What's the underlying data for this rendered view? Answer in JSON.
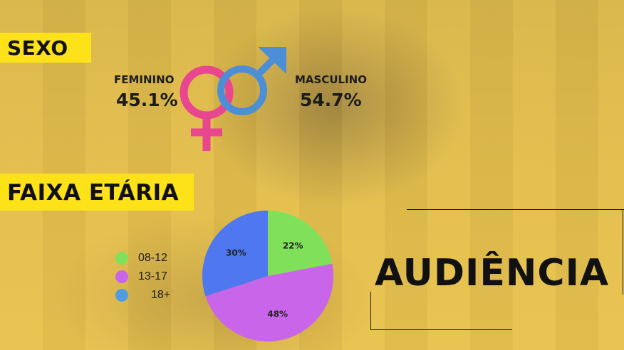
{
  "headings": {
    "sexo": "SEXO",
    "faixa_etaria": "FAIXA ETÁRIA",
    "audiencia": "AUDIÊNCIA"
  },
  "gender": {
    "female_label": "FEMININO",
    "female_value": "45.1%",
    "male_label": "MASCULINO",
    "male_value": "54.7%",
    "female_color": "#e8468f",
    "male_color": "#4c8fd6",
    "female_icon": "venus-icon",
    "male_icon": "mars-icon"
  },
  "chart_data": {
    "type": "pie",
    "categories": [
      "08-12",
      "13-17",
      "18+"
    ],
    "values": [
      22,
      48,
      30
    ],
    "labels": [
      "22%",
      "48%",
      "30%"
    ],
    "colors": [
      "#80e05a",
      "#c965e8",
      "#4f78f0"
    ],
    "legend_colors": [
      "#80e05a",
      "#c965e8",
      "#4f9de0"
    ],
    "legend_position": "left"
  },
  "theme": {
    "label_bg": "#fde21a",
    "background": "#e2bd4c"
  }
}
